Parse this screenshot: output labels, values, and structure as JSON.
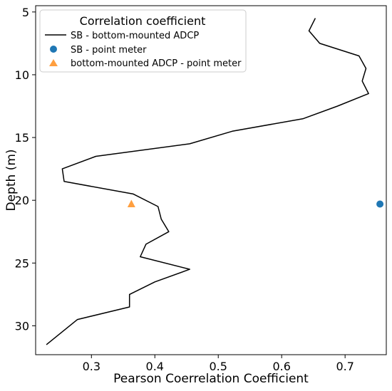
{
  "chart_data": {
    "type": "line",
    "xlabel": "Pearson Coerrelation Coefficient",
    "ylabel": "Depth (m)",
    "xlim": [
      0.212,
      0.765
    ],
    "ylim": [
      32.3,
      4.5
    ],
    "y_inverted": true,
    "xticks": [
      0.3,
      0.4,
      0.5,
      0.6,
      0.7
    ],
    "yticks": [
      5,
      10,
      15,
      20,
      25,
      30
    ],
    "xtick_labels": [
      "0.3",
      "0.4",
      "0.5",
      "0.6",
      "0.7"
    ],
    "ytick_labels": [
      "5",
      "10",
      "15",
      "20",
      "25",
      "30"
    ],
    "grid": false,
    "legend": {
      "title": "Correlation coefficient",
      "placement": "top-left",
      "entries": [
        {
          "label": "SB - bottom-mounted ADCP",
          "marker": "line"
        },
        {
          "label": "SB - point meter",
          "marker": "circle"
        },
        {
          "label": "bottom-mounted ADCP - point meter",
          "marker": "triangle"
        }
      ]
    },
    "series": [
      {
        "name": "SB - bottom-mounted ADCP",
        "kind": "line",
        "color": "#000000",
        "points": [
          [
            0.653,
            5.5
          ],
          [
            0.643,
            6.5
          ],
          [
            0.66,
            7.5
          ],
          [
            0.722,
            8.5
          ],
          [
            0.733,
            9.5
          ],
          [
            0.727,
            10.5
          ],
          [
            0.737,
            11.5
          ],
          [
            0.688,
            12.5
          ],
          [
            0.634,
            13.5
          ],
          [
            0.522,
            14.5
          ],
          [
            0.455,
            15.5
          ],
          [
            0.307,
            16.5
          ],
          [
            0.254,
            17.5
          ],
          [
            0.257,
            18.5
          ],
          [
            0.366,
            19.5
          ],
          [
            0.405,
            20.5
          ],
          [
            0.41,
            21.5
          ],
          [
            0.422,
            22.5
          ],
          [
            0.386,
            23.5
          ],
          [
            0.377,
            24.5
          ],
          [
            0.455,
            25.5
          ],
          [
            0.4,
            26.5
          ],
          [
            0.36,
            27.5
          ],
          [
            0.36,
            28.5
          ],
          [
            0.278,
            29.5
          ],
          [
            0.229,
            31.5
          ]
        ]
      },
      {
        "name": "SB - point meter",
        "kind": "scatter",
        "marker": "circle",
        "color": "#1f77b4",
        "points": [
          [
            0.755,
            20.3
          ]
        ]
      },
      {
        "name": "bottom-mounted ADCP - point meter",
        "kind": "scatter",
        "marker": "triangle",
        "color": "#ff7f0e",
        "points": [
          [
            0.363,
            20.3
          ]
        ]
      }
    ]
  }
}
